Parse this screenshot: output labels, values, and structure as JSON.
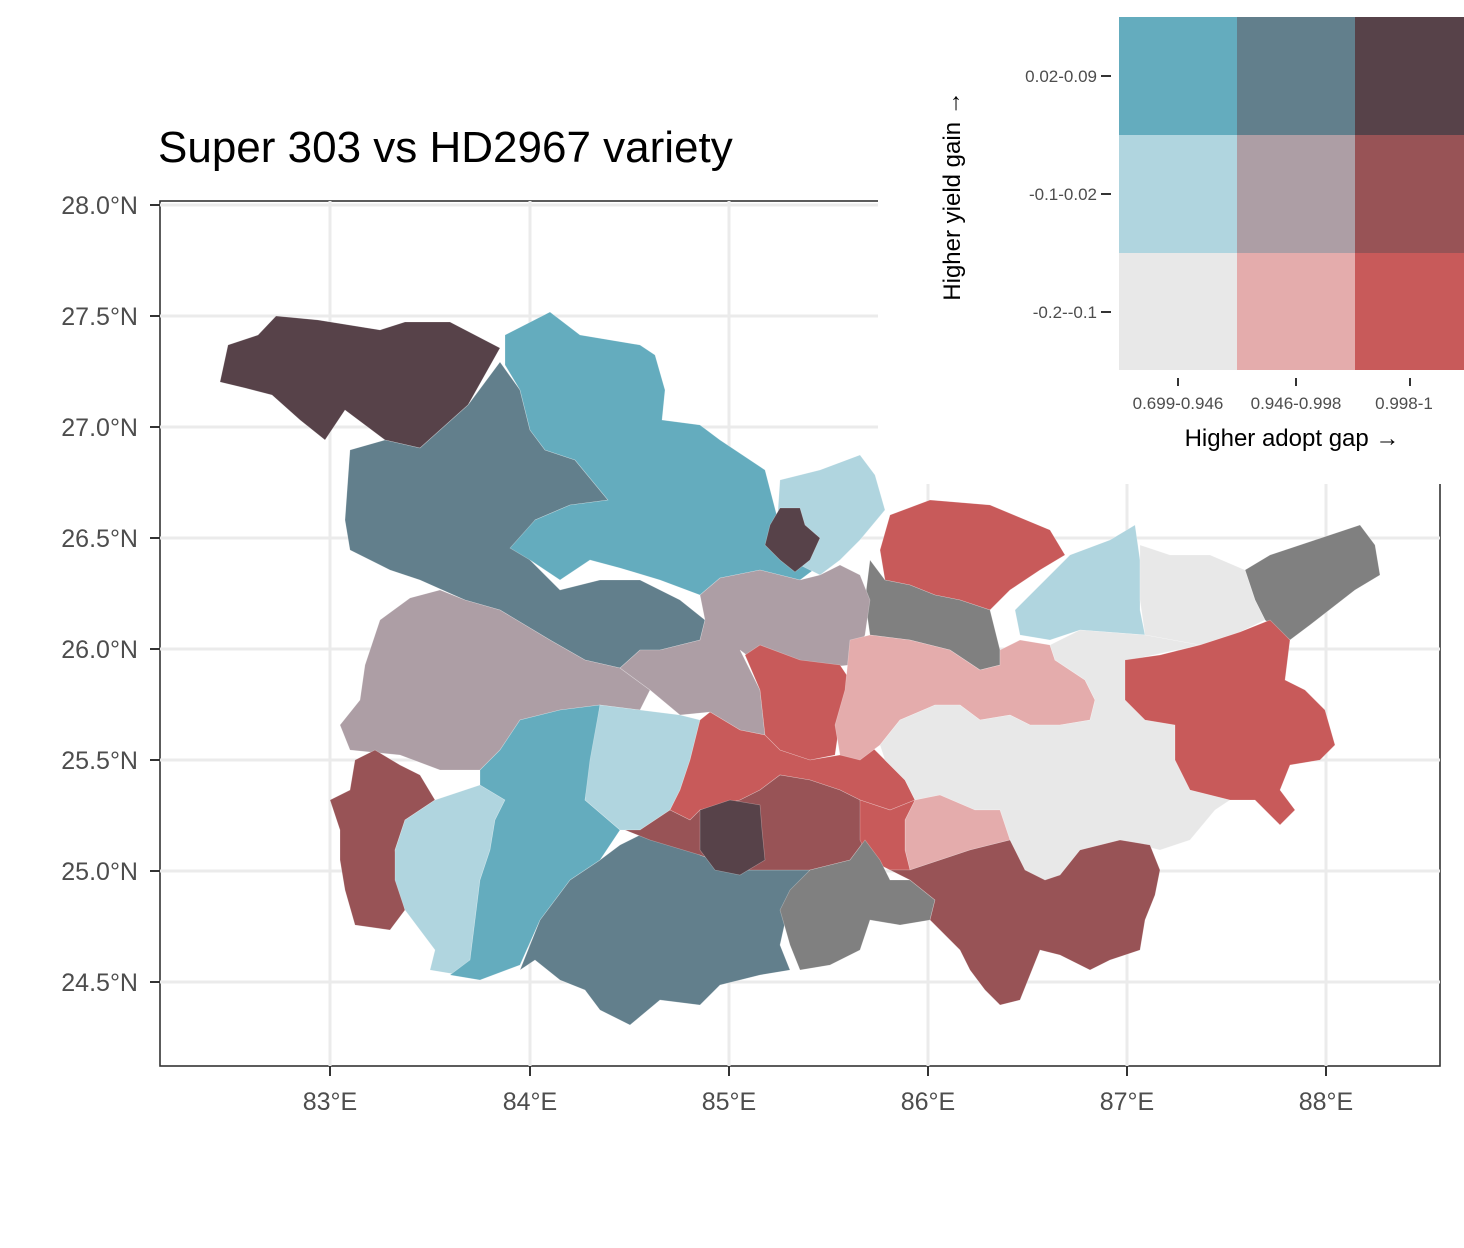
{
  "title": "Super 303 vs HD2967 variety",
  "axes": {
    "y_ticks": [
      "28.0°N",
      "27.5°N",
      "27.0°N",
      "26.5°N",
      "26.0°N",
      "25.5°N",
      "25.0°N",
      "24.5°N"
    ],
    "x_ticks": [
      "83°E",
      "84°E",
      "85°E",
      "86°E",
      "87°E",
      "88°E"
    ]
  },
  "legend": {
    "y_title": "Higher yield gain →",
    "x_title": "Higher adopt gap →",
    "y_labels": [
      "0.02-0.09",
      "-0.1-0.02",
      "-0.2--0.1"
    ],
    "x_labels": [
      "0.699-0.946",
      "0.946-0.998",
      "0.998-1"
    ],
    "grid_colors": [
      [
        "#64acbe",
        "#627f8c",
        "#574249"
      ],
      [
        "#b0d5df",
        "#ad9ea5",
        "#985356"
      ],
      [
        "#e8e8e8",
        "#e4acac",
        "#c85a5a"
      ]
    ]
  },
  "colors": {
    "no_data": "#808080"
  }
}
